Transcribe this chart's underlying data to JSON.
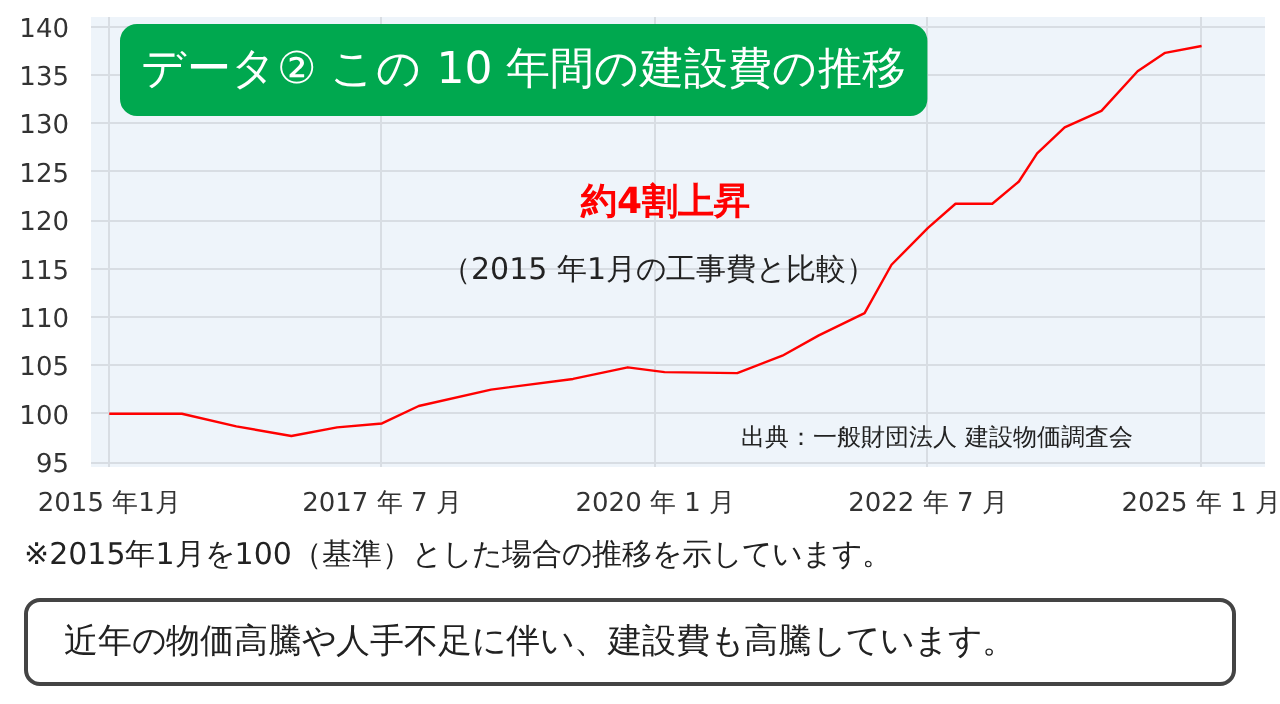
{
  "chart_data": {
    "type": "line",
    "title": "データ② この 10 年間の建設費の推移",
    "x": [
      "2015-01",
      "2015-09",
      "2016-03",
      "2016-09",
      "2017-02",
      "2017-07",
      "2017-11",
      "2018-07",
      "2019-04",
      "2019-10",
      "2020-02",
      "2020-10",
      "2021-03",
      "2021-07",
      "2021-12",
      "2022-03",
      "2022-07",
      "2022-10",
      "2023-02",
      "2023-05",
      "2023-07",
      "2023-10",
      "2024-02",
      "2024-06",
      "2024-09",
      "2025-01"
    ],
    "series": [
      {
        "color": "#ff0000",
        "values": [
          100,
          100,
          98.7,
          97.7,
          98.6,
          99,
          100.8,
          102.5,
          103.6,
          104.8,
          104.3,
          104.2,
          106,
          108.1,
          110.4,
          115.4,
          119.2,
          121.7,
          121.7,
          124,
          126.9,
          129.6,
          131.3,
          135.4,
          137.3,
          138
        ]
      }
    ],
    "xlim": [
      "2014-11",
      "2025-08"
    ],
    "xticks": [
      {
        "value": "2015-01",
        "label": "2015 年1月"
      },
      {
        "value": "2017-07",
        "label": "2017 年 7 月"
      },
      {
        "value": "2020-01",
        "label": "2020 年 1 月"
      },
      {
        "value": "2022-07",
        "label": "2022 年 7 月"
      },
      {
        "value": "2025-01",
        "label": "2025 年 1 月"
      }
    ],
    "ylim": [
      94.5,
      141
    ],
    "yticks": [
      95,
      100,
      105,
      110,
      115,
      120,
      125,
      130,
      135,
      140
    ],
    "grid": true,
    "line_style": "solid",
    "marker": "none",
    "annotations": [
      "約4割上昇",
      "（2015 年1月の工事費と比較）",
      "出典：一般財団法人  建設物価調査会",
      "※2015年1月を100（基準）とした場合の推移を示しています。",
      "近年の物価高騰や人手不足に伴い、建設費も高騰しています。"
    ]
  }
}
